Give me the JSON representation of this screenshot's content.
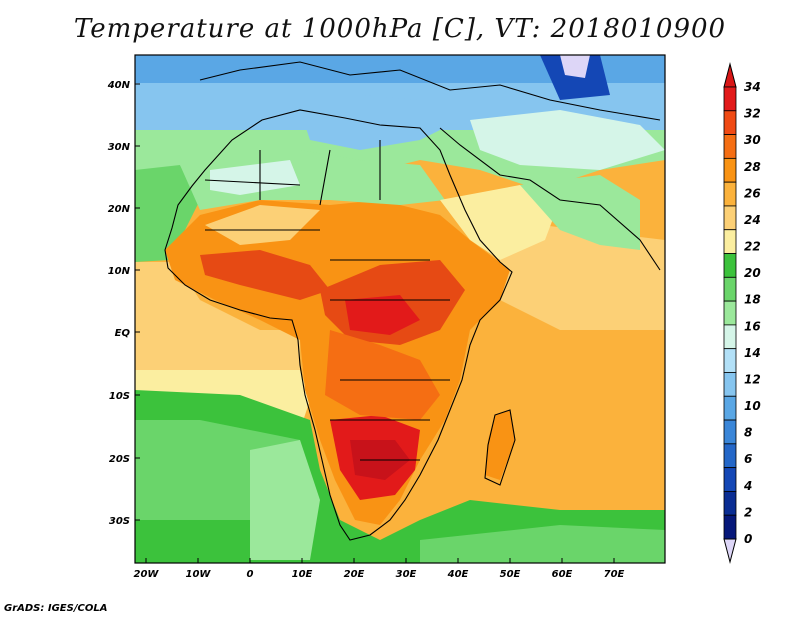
{
  "title": "Temperature at 1000hPa [C], VT: 2018010900",
  "footer": "GrADS: IGES/COLA",
  "map": {
    "lat_ticks": [
      "40N",
      "30N",
      "20N",
      "10N",
      "EQ",
      "10S",
      "20S",
      "30S"
    ],
    "lon_ticks": [
      "20W",
      "10W",
      "0",
      "10E",
      "20E",
      "30E",
      "40E",
      "50E",
      "60E",
      "70E"
    ]
  },
  "colorbar": {
    "labels": [
      "34",
      "32",
      "30",
      "28",
      "26",
      "24",
      "22",
      "20",
      "18",
      "16",
      "14",
      "12",
      "10",
      "8",
      "6",
      "4",
      "2",
      "0"
    ],
    "colors": [
      "#e21a1a",
      "#f04a14",
      "#f56e13",
      "#f99314",
      "#fbb23c",
      "#fcd076",
      "#fbeea0",
      "#3cc23c",
      "#6ad56a",
      "#9be89b",
      "#d5f5e8",
      "#b2e0f7",
      "#86c5ef",
      "#5aa7e5",
      "#3a86d8",
      "#2467c8",
      "#1447b5",
      "#0a2d93",
      "#06187a"
    ],
    "arrow_top_color": "#d81616",
    "arrow_bottom_color": "#ddd6f7"
  },
  "colors": {
    "ocean_warm": "#fbb23c",
    "ocean_mid": "#fcd076",
    "ocean_cool": "#3cc23c",
    "land_hot": "#e64a14",
    "land_warm": "#f99314",
    "north_cold": "#86c5ef"
  }
}
